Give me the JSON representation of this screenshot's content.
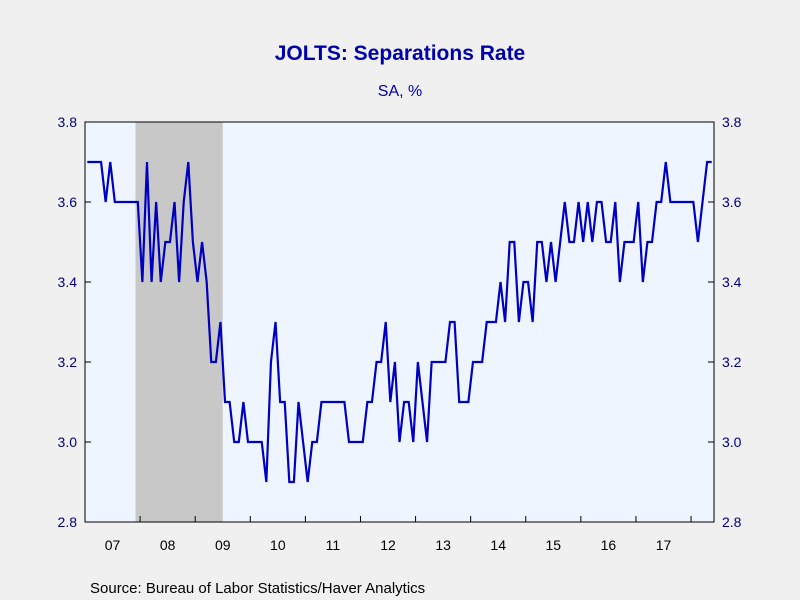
{
  "chart_data": {
    "type": "line",
    "title": "JOLTS: Separations Rate",
    "subtitle": "SA, %",
    "source": "Source:  Bureau of Labor Statistics/Haver Analytics",
    "y_tick_labels": [
      "2.8",
      "3.0",
      "3.2",
      "3.4",
      "3.6",
      "3.8"
    ],
    "y_ticks": [
      2.8,
      3.0,
      3.2,
      3.4,
      3.6,
      3.8
    ],
    "ylim": [
      2.8,
      3.8
    ],
    "x_tick_labels": [
      "07",
      "08",
      "09",
      "10",
      "11",
      "12",
      "13",
      "14",
      "15",
      "16",
      "17"
    ],
    "x_start": "2007-01",
    "recession": {
      "start": "2007-12",
      "end": "2009-06"
    },
    "colors": {
      "line": "#0000c0",
      "recession": "#c8c8c8",
      "plot_bg": "#eef5ff",
      "text": "#0000aa"
    },
    "grid": false,
    "series": [
      {
        "values": [
          3.7,
          3.7,
          3.7,
          3.7,
          3.6,
          3.7,
          3.6,
          3.6,
          3.6,
          3.6,
          3.6,
          3.6,
          3.4,
          3.7,
          3.4,
          3.6,
          3.4,
          3.5,
          3.5,
          3.6,
          3.4,
          3.6,
          3.7,
          3.5,
          3.4,
          3.5,
          3.4,
          3.2,
          3.2,
          3.3,
          3.1,
          3.1,
          3.0,
          3.0,
          3.1,
          3.0,
          3.0,
          3.0,
          3.0,
          2.9,
          3.2,
          3.3,
          3.1,
          3.1,
          2.9,
          2.9,
          3.1,
          3.0,
          2.9,
          3.0,
          3.0,
          3.1,
          3.1,
          3.1,
          3.1,
          3.1,
          3.1,
          3.0,
          3.0,
          3.0,
          3.0,
          3.1,
          3.1,
          3.2,
          3.2,
          3.3,
          3.1,
          3.2,
          3.0,
          3.1,
          3.1,
          3.0,
          3.2,
          3.1,
          3.0,
          3.2,
          3.2,
          3.2,
          3.2,
          3.3,
          3.3,
          3.1,
          3.1,
          3.1,
          3.2,
          3.2,
          3.2,
          3.3,
          3.3,
          3.3,
          3.4,
          3.3,
          3.5,
          3.5,
          3.3,
          3.4,
          3.4,
          3.3,
          3.5,
          3.5,
          3.4,
          3.5,
          3.4,
          3.5,
          3.6,
          3.5,
          3.5,
          3.6,
          3.5,
          3.6,
          3.5,
          3.6,
          3.6,
          3.5,
          3.5,
          3.6,
          3.4,
          3.5,
          3.5,
          3.5,
          3.6,
          3.4,
          3.5,
          3.5,
          3.6,
          3.6,
          3.7,
          3.6,
          3.6,
          3.6,
          3.6,
          3.6,
          3.6,
          3.5,
          3.6,
          3.7,
          3.7
        ]
      }
    ]
  }
}
